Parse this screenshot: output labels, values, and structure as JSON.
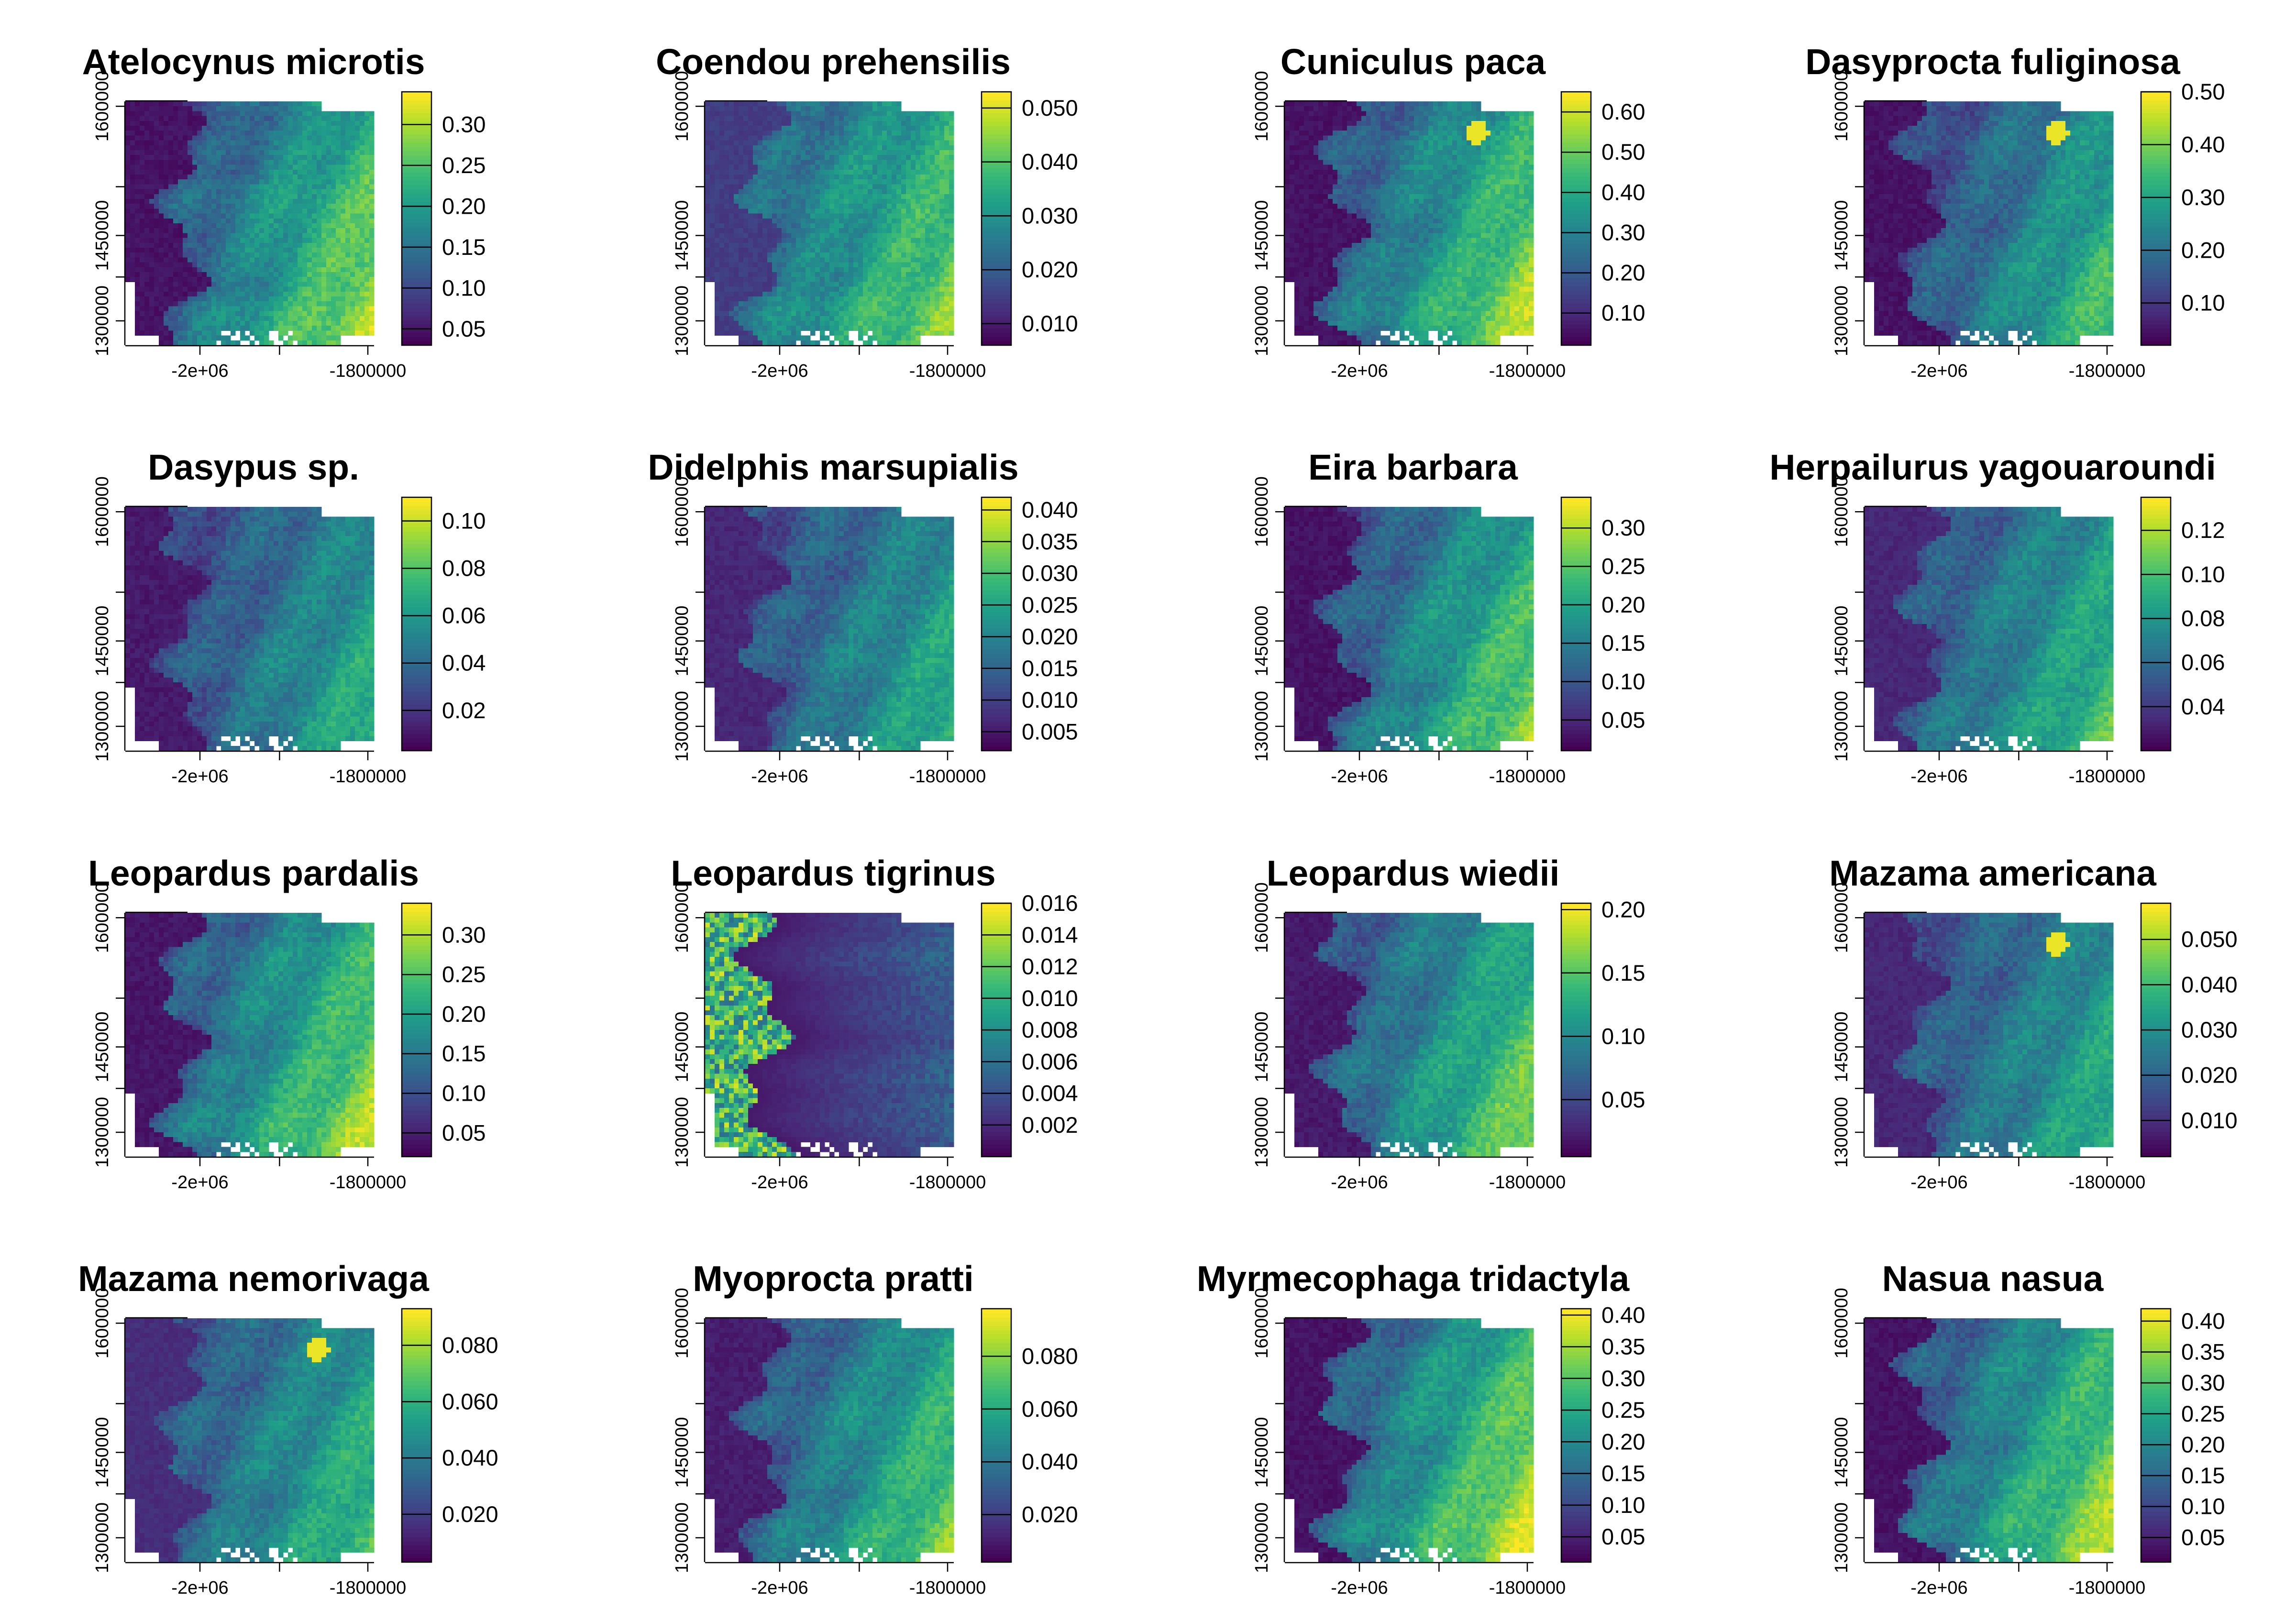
{
  "palette": [
    "#440154",
    "#482878",
    "#3e4989",
    "#31688e",
    "#26828e",
    "#1f9e89",
    "#35b779",
    "#6ece58",
    "#b5de2b",
    "#fde725"
  ],
  "map_panels": [
    {
      "title": "Atelocynus microtis",
      "colorbar_ticks": [
        "0.05",
        "0.10",
        "0.15",
        "0.20",
        "0.25",
        "0.30"
      ],
      "colorbar_values": [
        0.05,
        0.1,
        0.15,
        0.2,
        0.25,
        0.3
      ],
      "colorbar_range": [
        0.03,
        0.34
      ],
      "x_ticks": [
        "-2e+06",
        "-1800000"
      ],
      "y_ticks": [
        "1300000",
        "1450000",
        "1600000"
      ],
      "max_level": 0.8,
      "west_level": 0.02,
      "hotspot": false,
      "inverted": false
    },
    {
      "title": "Coendou prehensilis",
      "colorbar_ticks": [
        "0.010",
        "0.020",
        "0.030",
        "0.040",
        "0.050"
      ],
      "colorbar_values": [
        0.01,
        0.02,
        0.03,
        0.04,
        0.05
      ],
      "colorbar_range": [
        0.006,
        0.053
      ],
      "x_ticks": [
        "-2e+06",
        "-1800000"
      ],
      "y_ticks": [
        "1300000",
        "1450000",
        "1600000"
      ],
      "max_level": 0.75,
      "west_level": 0.15,
      "hotspot": false,
      "inverted": false
    },
    {
      "title": "Cuniculus paca",
      "colorbar_ticks": [
        "0.10",
        "0.20",
        "0.30",
        "0.40",
        "0.50",
        "0.60"
      ],
      "colorbar_values": [
        0.1,
        0.2,
        0.3,
        0.4,
        0.5,
        0.6
      ],
      "colorbar_range": [
        0.02,
        0.65
      ],
      "x_ticks": [
        "-2e+06",
        "-1800000"
      ],
      "y_ticks": [
        "1300000",
        "1450000",
        "1600000"
      ],
      "max_level": 0.8,
      "west_level": 0.02,
      "hotspot": true,
      "inverted": false
    },
    {
      "title": "Dasyprocta fuliginosa",
      "colorbar_ticks": [
        "0.10",
        "0.20",
        "0.30",
        "0.40",
        "0.50"
      ],
      "colorbar_values": [
        0.1,
        0.2,
        0.3,
        0.4,
        0.5
      ],
      "colorbar_range": [
        0.02,
        0.5
      ],
      "x_ticks": [
        "-2e+06",
        "-1800000"
      ],
      "y_ticks": [
        "1300000",
        "1450000",
        "1600000"
      ],
      "max_level": 0.65,
      "west_level": 0.02,
      "hotspot": true,
      "inverted": false
    },
    {
      "title": "Dasypus sp.",
      "colorbar_ticks": [
        "0.02",
        "0.04",
        "0.06",
        "0.08",
        "0.10"
      ],
      "colorbar_values": [
        0.02,
        0.04,
        0.06,
        0.08,
        0.1
      ],
      "colorbar_range": [
        0.003,
        0.11
      ],
      "x_ticks": [
        "-2e+06",
        "-1800000"
      ],
      "y_ticks": [
        "1300000",
        "1450000",
        "1600000"
      ],
      "max_level": 0.6,
      "west_level": 0.04,
      "hotspot": false,
      "inverted": false
    },
    {
      "title": "Didelphis marsupialis",
      "colorbar_ticks": [
        "0.005",
        "0.010",
        "0.015",
        "0.020",
        "0.025",
        "0.030",
        "0.035",
        "0.040"
      ],
      "colorbar_values": [
        0.005,
        0.01,
        0.015,
        0.02,
        0.025,
        0.03,
        0.035,
        0.04
      ],
      "colorbar_range": [
        0.002,
        0.042
      ],
      "x_ticks": [
        "-2e+06",
        "-1800000"
      ],
      "y_ticks": [
        "1300000",
        "1450000",
        "1600000"
      ],
      "max_level": 0.6,
      "west_level": 0.08,
      "hotspot": false,
      "inverted": false
    },
    {
      "title": "Eira barbara",
      "colorbar_ticks": [
        "0.05",
        "0.10",
        "0.15",
        "0.20",
        "0.25",
        "0.30"
      ],
      "colorbar_values": [
        0.05,
        0.1,
        0.15,
        0.2,
        0.25,
        0.3
      ],
      "colorbar_range": [
        0.01,
        0.34
      ],
      "x_ticks": [
        "-2e+06",
        "-1800000"
      ],
      "y_ticks": [
        "1300000",
        "1450000",
        "1600000"
      ],
      "max_level": 0.75,
      "west_level": 0.02,
      "hotspot": false,
      "inverted": false
    },
    {
      "title": "Herpailurus yagouaroundi",
      "colorbar_ticks": [
        "0.04",
        "0.06",
        "0.08",
        "0.10",
        "0.12"
      ],
      "colorbar_values": [
        0.04,
        0.06,
        0.08,
        0.1,
        0.12
      ],
      "colorbar_range": [
        0.02,
        0.135
      ],
      "x_ticks": [
        "-2e+06",
        "-1800000"
      ],
      "y_ticks": [
        "1300000",
        "1450000",
        "1600000"
      ],
      "max_level": 0.65,
      "west_level": 0.08,
      "hotspot": false,
      "inverted": false
    },
    {
      "title": "Leopardus pardalis",
      "colorbar_ticks": [
        "0.05",
        "0.10",
        "0.15",
        "0.20",
        "0.25",
        "0.30"
      ],
      "colorbar_values": [
        0.05,
        0.1,
        0.15,
        0.2,
        0.25,
        0.3
      ],
      "colorbar_range": [
        0.02,
        0.34
      ],
      "x_ticks": [
        "-2e+06",
        "-1800000"
      ],
      "y_ticks": [
        "1300000",
        "1450000",
        "1600000"
      ],
      "max_level": 0.8,
      "west_level": 0.03,
      "hotspot": false,
      "inverted": false
    },
    {
      "title": "Leopardus tigrinus",
      "colorbar_ticks": [
        "0.002",
        "0.004",
        "0.006",
        "0.008",
        "0.010",
        "0.012",
        "0.014",
        "0.016"
      ],
      "colorbar_values": [
        0.002,
        0.004,
        0.006,
        0.008,
        0.01,
        0.012,
        0.014,
        0.016
      ],
      "colorbar_range": [
        0.0,
        0.016
      ],
      "x_ticks": [
        "-2e+06",
        "-1800000"
      ],
      "y_ticks": [
        "1300000",
        "1450000",
        "1600000"
      ],
      "max_level": 0.35,
      "west_level": 0.7,
      "hotspot": false,
      "inverted": true
    },
    {
      "title": "Leopardus wiedii",
      "colorbar_ticks": [
        "0.05",
        "0.10",
        "0.15",
        "0.20"
      ],
      "colorbar_values": [
        0.05,
        0.1,
        0.15,
        0.2
      ],
      "colorbar_range": [
        0.005,
        0.205
      ],
      "x_ticks": [
        "-2e+06",
        "-1800000"
      ],
      "y_ticks": [
        "1300000",
        "1450000",
        "1600000"
      ],
      "max_level": 0.75,
      "west_level": 0.04,
      "hotspot": false,
      "inverted": false
    },
    {
      "title": "Mazama americana",
      "colorbar_ticks": [
        "0.010",
        "0.020",
        "0.030",
        "0.040",
        "0.050"
      ],
      "colorbar_values": [
        0.01,
        0.02,
        0.03,
        0.04,
        0.05
      ],
      "colorbar_range": [
        0.002,
        0.058
      ],
      "x_ticks": [
        "-2e+06",
        "-1800000"
      ],
      "y_ticks": [
        "1300000",
        "1450000",
        "1600000"
      ],
      "max_level": 0.6,
      "west_level": 0.08,
      "hotspot": true,
      "inverted": false
    },
    {
      "title": "Mazama nemorivaga",
      "colorbar_ticks": [
        "0.020",
        "0.040",
        "0.060",
        "0.080"
      ],
      "colorbar_values": [
        0.02,
        0.04,
        0.06,
        0.08
      ],
      "colorbar_range": [
        0.003,
        0.093
      ],
      "x_ticks": [
        "-2e+06",
        "-1800000"
      ],
      "y_ticks": [
        "1300000",
        "1450000",
        "1600000"
      ],
      "max_level": 0.65,
      "west_level": 0.1,
      "hotspot": true,
      "inverted": false
    },
    {
      "title": "Myoprocta pratti",
      "colorbar_ticks": [
        "0.020",
        "0.040",
        "0.060",
        "0.080"
      ],
      "colorbar_values": [
        0.02,
        0.04,
        0.06,
        0.08
      ],
      "colorbar_range": [
        0.002,
        0.098
      ],
      "x_ticks": [
        "-2e+06",
        "-1800000"
      ],
      "y_ticks": [
        "1300000",
        "1450000",
        "1600000"
      ],
      "max_level": 0.72,
      "west_level": 0.05,
      "hotspot": false,
      "inverted": false
    },
    {
      "title": "Myrmecophaga tridactyla",
      "colorbar_ticks": [
        "0.05",
        "0.10",
        "0.15",
        "0.20",
        "0.25",
        "0.30",
        "0.35",
        "0.40"
      ],
      "colorbar_values": [
        0.05,
        0.1,
        0.15,
        0.2,
        0.25,
        0.3,
        0.35,
        0.4
      ],
      "colorbar_range": [
        0.01,
        0.41
      ],
      "x_ticks": [
        "-2e+06",
        "-1800000"
      ],
      "y_ticks": [
        "1300000",
        "1450000",
        "1600000"
      ],
      "max_level": 0.85,
      "west_level": 0.02,
      "hotspot": false,
      "inverted": false
    },
    {
      "title": "Nasua nasua",
      "colorbar_ticks": [
        "0.05",
        "0.10",
        "0.15",
        "0.20",
        "0.25",
        "0.30",
        "0.35",
        "0.40"
      ],
      "colorbar_values": [
        0.05,
        0.1,
        0.15,
        0.2,
        0.25,
        0.3,
        0.35,
        0.4
      ],
      "colorbar_range": [
        0.01,
        0.42
      ],
      "x_ticks": [
        "-2e+06",
        "-1800000"
      ],
      "y_ticks": [
        "1300000",
        "1450000",
        "1600000"
      ],
      "max_level": 0.8,
      "west_level": 0.02,
      "hotspot": false,
      "inverted": false
    }
  ],
  "chart_data": {
    "type": "heatmap",
    "layout": "4 x 4 grid of raster maps with colour bars",
    "title": "",
    "xlabel": "",
    "ylabel": "",
    "x_ticks": [
      -2000000,
      -1800000
    ],
    "x_tick_labels": [
      "-2e+06",
      "-1800000"
    ],
    "y_ticks": [
      1300000,
      1450000,
      1600000
    ],
    "y_tick_labels": [
      "1300000",
      "1450000",
      "1600000"
    ],
    "colormap": "viridis",
    "panels": [
      "Atelocynus microtis",
      "Coendou prehensilis",
      "Cuniculus paca",
      "Dasyprocta fuliginosa",
      "Dasypus sp.",
      "Didelphis marsupialis",
      "Eira barbara",
      "Herpailurus yagouaroundi",
      "Leopardus pardalis",
      "Leopardus tigrinus",
      "Leopardus wiedii",
      "Mazama americana",
      "Mazama nemorivaga",
      "Myoprocta pratti",
      "Myrmecophaga tridactyla",
      "Nasua nasua"
    ]
  }
}
